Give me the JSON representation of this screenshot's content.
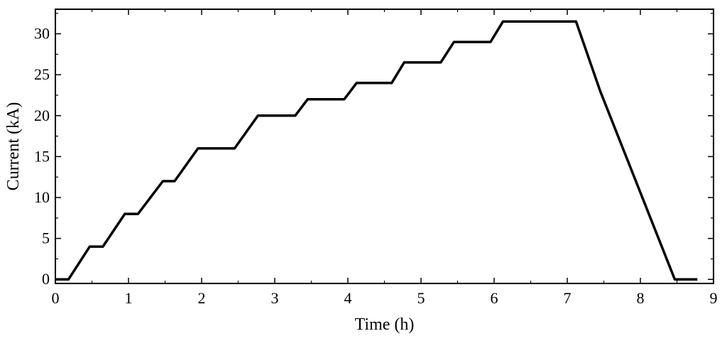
{
  "chart_data": {
    "type": "line",
    "title": "",
    "xlabel": "Time (h)",
    "ylabel": "Current (kA)",
    "xlim": [
      0,
      9
    ],
    "ylim": [
      -0.5,
      33
    ],
    "xticks": [
      0,
      1,
      2,
      3,
      4,
      5,
      6,
      7,
      8,
      9
    ],
    "yticks": [
      0,
      5,
      10,
      15,
      20,
      25,
      30
    ],
    "x_minor_step": 0.5,
    "y_minor_step": 2.5,
    "grid": false,
    "legend": "none",
    "line_color": "#000000",
    "series": [
      {
        "x": [
          0,
          0.18,
          0.47,
          0.65,
          0.95,
          1.13,
          1.47,
          1.63,
          1.95,
          2.45,
          2.77,
          3.28,
          3.45,
          3.95,
          4.12,
          4.6,
          4.77,
          5.27,
          5.45,
          5.95,
          6.12,
          7.12,
          7.45,
          8.47,
          8.52,
          8.78
        ],
        "y": [
          0,
          0,
          4,
          4,
          8,
          8,
          12,
          12,
          16,
          16,
          20,
          20,
          22,
          22,
          24,
          24,
          26.5,
          26.5,
          29,
          29,
          31.5,
          31.5,
          23,
          0,
          0,
          0
        ]
      }
    ]
  }
}
